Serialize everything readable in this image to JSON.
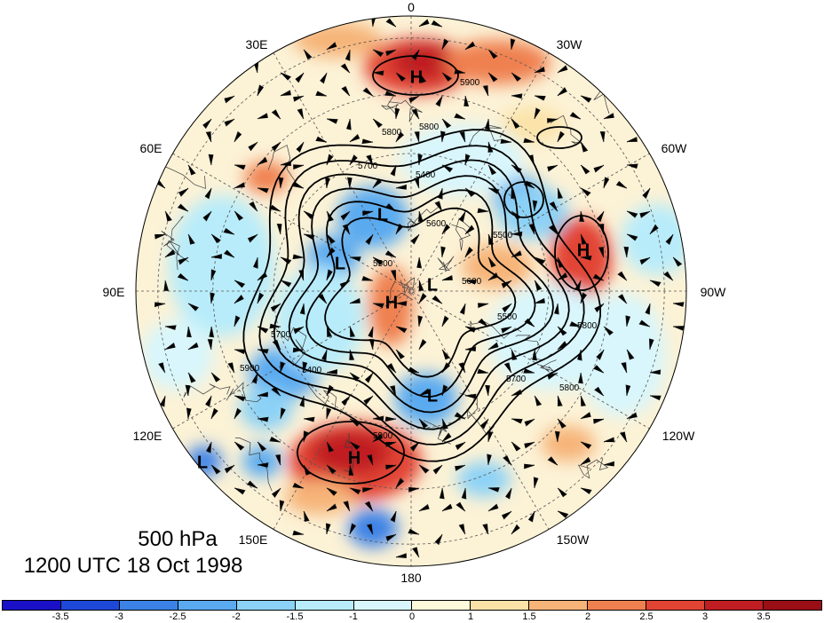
{
  "longitude_labels": [
    "0",
    "30W",
    "60W",
    "90W",
    "120W",
    "150W",
    "180",
    "150E",
    "120E",
    "90E",
    "60E",
    "30E"
  ],
  "caption": {
    "line1": "500 hPa",
    "line2": "1200 UTC 18 Oct 1998"
  },
  "colorbar": {
    "ticks": [
      "-3.5",
      "-3",
      "-2.5",
      "-2",
      "-1.5",
      "-1",
      "0",
      "1",
      "1.5",
      "2",
      "2.5",
      "3",
      "3.5"
    ],
    "colors": [
      "#1a10c8",
      "#1e48d8",
      "#3c82e6",
      "#5aaaf0",
      "#8cd2f6",
      "#b8ecfa",
      "#d8f6fc",
      "#fefadc",
      "#fbe3a8",
      "#f6b478",
      "#ef8050",
      "#e24434",
      "#c01e22",
      "#9a0e16"
    ]
  },
  "contour_labels": [
    "5900",
    "5800",
    "5800",
    "5700",
    "5600",
    "5500",
    "5400",
    "5400",
    "5600",
    "5500",
    "5500",
    "5700",
    "5700",
    "5800",
    "5800",
    "5900",
    "5900"
  ],
  "centers": [
    {
      "type": "H",
      "label": "H"
    },
    {
      "type": "L",
      "label": "L"
    },
    {
      "type": "H",
      "label": "H"
    },
    {
      "type": "L",
      "label": "L"
    },
    {
      "type": "H",
      "label": "H"
    },
    {
      "type": "L",
      "label": "L"
    },
    {
      "type": "L",
      "label": "L"
    },
    {
      "type": "H",
      "label": "H"
    },
    {
      "type": "L",
      "label": "L"
    }
  ]
}
